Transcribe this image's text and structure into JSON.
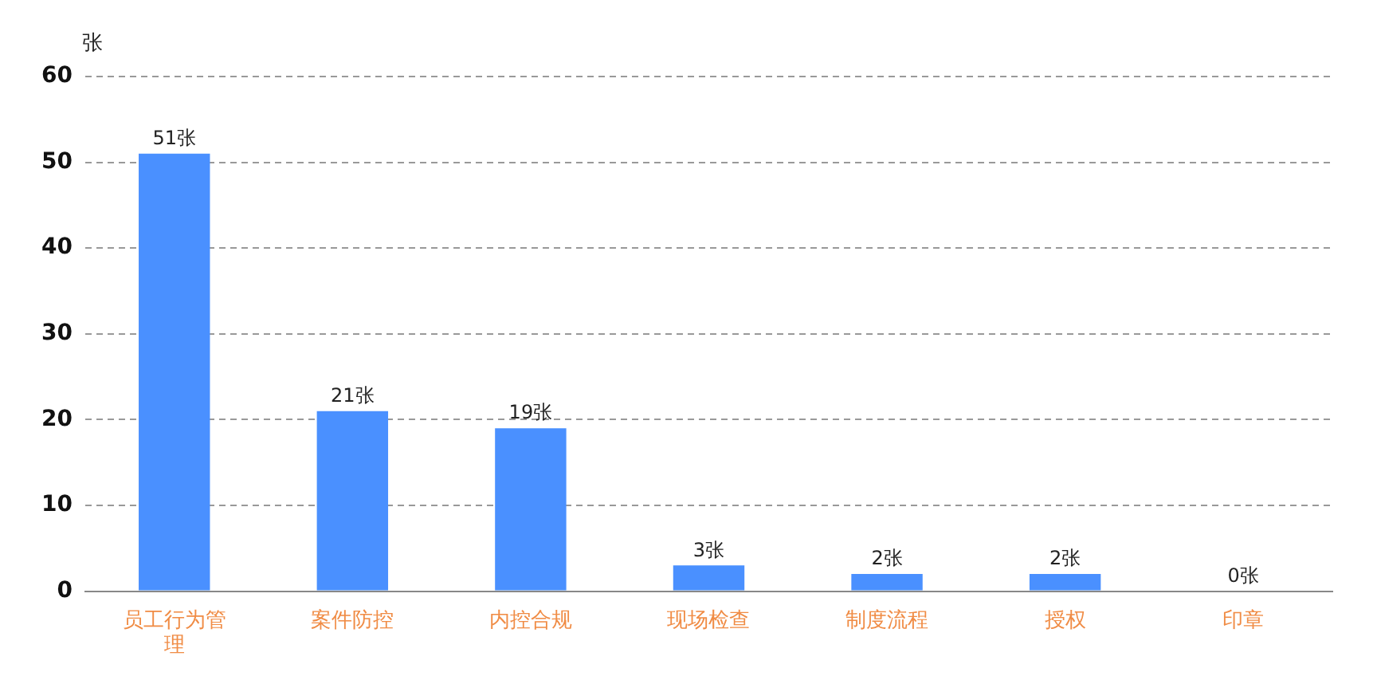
{
  "chart_data": {
    "type": "bar",
    "ylabel": "张",
    "categories": [
      "员工行为管理",
      "案件防控",
      "内控合规",
      "现场检查",
      "制度流程",
      "授权",
      "印章"
    ],
    "values": [
      51,
      21,
      19,
      3,
      2,
      2,
      0
    ],
    "color": "#4a90ff",
    "value_labels": [
      "51张",
      "21张",
      "19张",
      "3张",
      "2张",
      "2张",
      "0张"
    ],
    "ylim": [
      0,
      60
    ],
    "yticks": [
      0,
      10,
      20,
      30,
      40,
      50,
      60
    ],
    "grid": "y",
    "legend": false
  }
}
